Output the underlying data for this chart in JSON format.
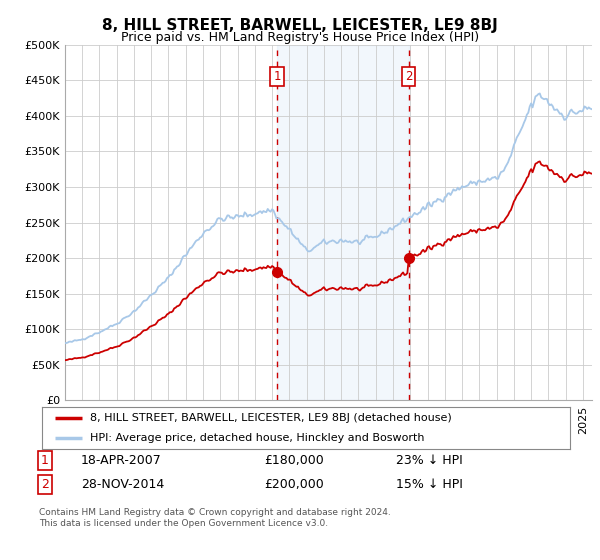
{
  "title": "8, HILL STREET, BARWELL, LEICESTER, LE9 8BJ",
  "subtitle": "Price paid vs. HM Land Registry's House Price Index (HPI)",
  "legend_line1": "8, HILL STREET, BARWELL, LEICESTER, LE9 8BJ (detached house)",
  "legend_line2": "HPI: Average price, detached house, Hinckley and Bosworth",
  "footnote": "Contains HM Land Registry data © Crown copyright and database right 2024.\nThis data is licensed under the Open Government Licence v3.0.",
  "transaction1_label": "1",
  "transaction1_date": "18-APR-2007",
  "transaction1_price": "£180,000",
  "transaction1_hpi": "23% ↓ HPI",
  "transaction1_year": 2007.29,
  "transaction1_value": 180000,
  "transaction2_label": "2",
  "transaction2_date": "28-NOV-2014",
  "transaction2_price": "£200,000",
  "transaction2_hpi": "15% ↓ HPI",
  "transaction2_year": 2014.91,
  "transaction2_value": 200000,
  "hpi_color": "#a8c8e8",
  "price_color": "#cc0000",
  "marker_color": "#cc0000",
  "vline_color": "#cc0000",
  "shade_color": "#ddeeff",
  "ylim": [
    0,
    500000
  ],
  "yticks": [
    0,
    50000,
    100000,
    150000,
    200000,
    250000,
    300000,
    350000,
    400000,
    450000,
    500000
  ],
  "xmin": 1995.0,
  "xmax": 2025.5,
  "background_color": "#ffffff",
  "grid_color": "#cccccc"
}
